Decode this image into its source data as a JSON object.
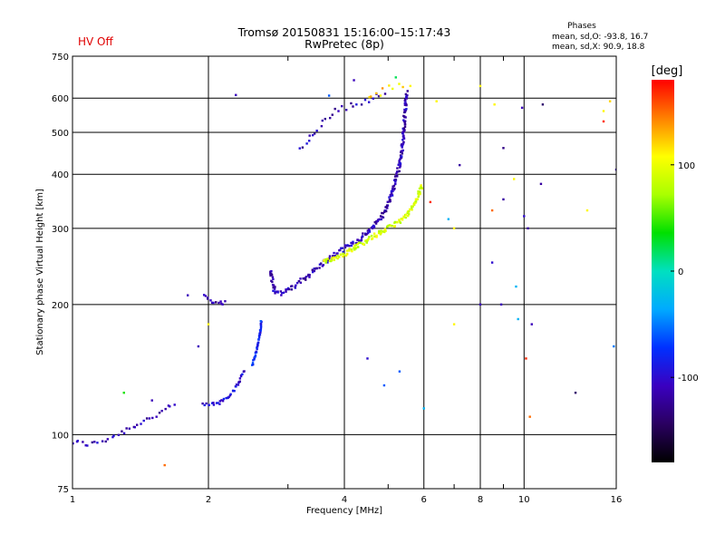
{
  "header": {
    "title_line1": "Tromsø 20150831 15:16:00–15:17:43",
    "title_line2": "RwPretec (8p)",
    "status": "HV Off",
    "status_color": "#e00000",
    "phases_title": "Phases",
    "phases_o": "mean, sd,O: -93.8, 16.7",
    "phases_x": "mean, sd,X:  90.9, 18.8"
  },
  "chart_data": {
    "type": "scatter",
    "xlabel": "Frequency [MHz]",
    "ylabel": "Stationary phase Virtual Height [km]",
    "x_scale": "log",
    "y_scale": "log",
    "xlim": [
      1,
      16
    ],
    "ylim": [
      75,
      750
    ],
    "x_ticks": [
      1,
      2,
      4,
      6,
      8,
      10,
      16
    ],
    "x_minor_ticks": [
      3,
      5,
      7,
      9
    ],
    "y_ticks": [
      75,
      100,
      200,
      300,
      400,
      500,
      600,
      750
    ],
    "grid": true,
    "colorbar": {
      "label": "[deg]",
      "range": [
        -180,
        180
      ],
      "ticks": [
        100,
        0,
        -100
      ],
      "tick_labels": [
        "100",
        "0",
        "-100"
      ]
    },
    "curves": [
      {
        "name": "O-low",
        "phase": -110,
        "spread": 0.015,
        "density": 0.6,
        "points": [
          [
            1.0,
            96
          ],
          [
            1.1,
            95
          ],
          [
            1.2,
            98
          ],
          [
            1.3,
            102
          ],
          [
            1.4,
            106
          ],
          [
            1.5,
            110
          ],
          [
            1.6,
            114
          ],
          [
            1.7,
            118
          ]
        ]
      },
      {
        "name": "O-E",
        "phase": -100,
        "spread": 0.01,
        "density": 1.2,
        "points": [
          [
            1.95,
            117
          ],
          [
            2.1,
            118
          ],
          [
            2.2,
            122
          ],
          [
            2.3,
            128
          ],
          [
            2.35,
            135
          ],
          [
            2.4,
            142
          ]
        ]
      },
      {
        "name": "O-E-cusp",
        "phase": -80,
        "spread": 0.005,
        "density": 1.5,
        "points": [
          [
            2.5,
            145
          ],
          [
            2.55,
            155
          ],
          [
            2.6,
            170
          ],
          [
            2.62,
            185
          ]
        ]
      },
      {
        "name": "O-F1a",
        "phase": -120,
        "spread": 0.01,
        "density": 1.0,
        "points": [
          [
            1.95,
            210
          ],
          [
            2.0,
            205
          ],
          [
            2.1,
            202
          ],
          [
            2.2,
            202
          ]
        ]
      },
      {
        "name": "O-F1",
        "phase": -110,
        "spread": 0.012,
        "density": 1.5,
        "points": [
          [
            2.75,
            240
          ],
          [
            2.8,
            215
          ],
          [
            2.9,
            212
          ],
          [
            3.1,
            220
          ],
          [
            3.3,
            232
          ],
          [
            3.6,
            250
          ],
          [
            4.0,
            270
          ],
          [
            4.3,
            282
          ]
        ]
      },
      {
        "name": "O-F2",
        "phase": -110,
        "spread": 0.012,
        "density": 2.0,
        "points": [
          [
            4.3,
            282
          ],
          [
            4.6,
            300
          ],
          [
            4.9,
            325
          ],
          [
            5.1,
            360
          ],
          [
            5.3,
            420
          ],
          [
            5.4,
            480
          ],
          [
            5.45,
            560
          ],
          [
            5.5,
            620
          ]
        ]
      },
      {
        "name": "X-F",
        "phase": 90,
        "spread": 0.012,
        "density": 2.0,
        "points": [
          [
            3.6,
            250
          ],
          [
            4.0,
            262
          ],
          [
            4.5,
            282
          ],
          [
            5.0,
            300
          ],
          [
            5.5,
            320
          ],
          [
            5.8,
            350
          ],
          [
            5.95,
            380
          ]
        ]
      },
      {
        "name": "O-spread",
        "phase": -110,
        "spread": 0.015,
        "density": 0.5,
        "points": [
          [
            3.2,
            460
          ],
          [
            3.5,
            510
          ],
          [
            3.8,
            560
          ],
          [
            4.2,
            580
          ],
          [
            4.6,
            600
          ],
          [
            5.0,
            620
          ]
        ]
      },
      {
        "name": "X-top",
        "phase": 120,
        "spread": 0.02,
        "density": 0.4,
        "points": [
          [
            4.5,
            600
          ],
          [
            5.0,
            630
          ],
          [
            5.5,
            650
          ]
        ]
      }
    ],
    "scattered_points": [
      {
        "x": 2.3,
        "y": 610,
        "phase": -110
      },
      {
        "x": 3.7,
        "y": 608,
        "phase": -60
      },
      {
        "x": 4.2,
        "y": 660,
        "phase": -110
      },
      {
        "x": 5.2,
        "y": 670,
        "phase": 20
      },
      {
        "x": 6.2,
        "y": 345,
        "phase": 170
      },
      {
        "x": 6.8,
        "y": 315,
        "phase": -30
      },
      {
        "x": 7.0,
        "y": 300,
        "phase": 110
      },
      {
        "x": 7.2,
        "y": 420,
        "phase": -120
      },
      {
        "x": 8.0,
        "y": 200,
        "phase": -110
      },
      {
        "x": 8.5,
        "y": 250,
        "phase": -100
      },
      {
        "x": 8.5,
        "y": 330,
        "phase": 150
      },
      {
        "x": 9.0,
        "y": 350,
        "phase": -120
      },
      {
        "x": 9.0,
        "y": 460,
        "phase": -130
      },
      {
        "x": 8.6,
        "y": 580,
        "phase": 110
      },
      {
        "x": 8.0,
        "y": 640,
        "phase": 110
      },
      {
        "x": 9.5,
        "y": 390,
        "phase": 110
      },
      {
        "x": 9.9,
        "y": 570,
        "phase": -110
      },
      {
        "x": 10.0,
        "y": 320,
        "phase": -100
      },
      {
        "x": 10.2,
        "y": 300,
        "phase": -120
      },
      {
        "x": 10.1,
        "y": 150,
        "phase": 170
      },
      {
        "x": 10.4,
        "y": 180,
        "phase": -110
      },
      {
        "x": 10.9,
        "y": 380,
        "phase": -120
      },
      {
        "x": 11.0,
        "y": 580,
        "phase": -140
      },
      {
        "x": 10.3,
        "y": 110,
        "phase": 150
      },
      {
        "x": 13.8,
        "y": 330,
        "phase": 110
      },
      {
        "x": 15.0,
        "y": 560,
        "phase": 110
      },
      {
        "x": 15.0,
        "y": 530,
        "phase": 170
      },
      {
        "x": 15.5,
        "y": 590,
        "phase": 120
      },
      {
        "x": 16.0,
        "y": 410,
        "phase": -110
      },
      {
        "x": 15.8,
        "y": 160,
        "phase": -50
      },
      {
        "x": 9.7,
        "y": 185,
        "phase": -30
      },
      {
        "x": 9.6,
        "y": 220,
        "phase": -30
      },
      {
        "x": 8.9,
        "y": 200,
        "phase": -110
      },
      {
        "x": 7.0,
        "y": 180,
        "phase": 110
      },
      {
        "x": 6.0,
        "y": 115,
        "phase": -30
      },
      {
        "x": 5.3,
        "y": 140,
        "phase": -60
      },
      {
        "x": 4.5,
        "y": 150,
        "phase": -100
      },
      {
        "x": 4.9,
        "y": 130,
        "phase": -60
      },
      {
        "x": 1.6,
        "y": 85,
        "phase": 150
      },
      {
        "x": 1.5,
        "y": 120,
        "phase": -110
      },
      {
        "x": 1.3,
        "y": 125,
        "phase": 40
      },
      {
        "x": 1.8,
        "y": 210,
        "phase": -110
      },
      {
        "x": 1.9,
        "y": 160,
        "phase": -110
      },
      {
        "x": 2.0,
        "y": 180,
        "phase": 110
      },
      {
        "x": 13.0,
        "y": 125,
        "phase": -140
      },
      {
        "x": 6.4,
        "y": 590,
        "phase": 110
      },
      {
        "x": 5.6,
        "y": 640,
        "phase": 110
      }
    ]
  }
}
